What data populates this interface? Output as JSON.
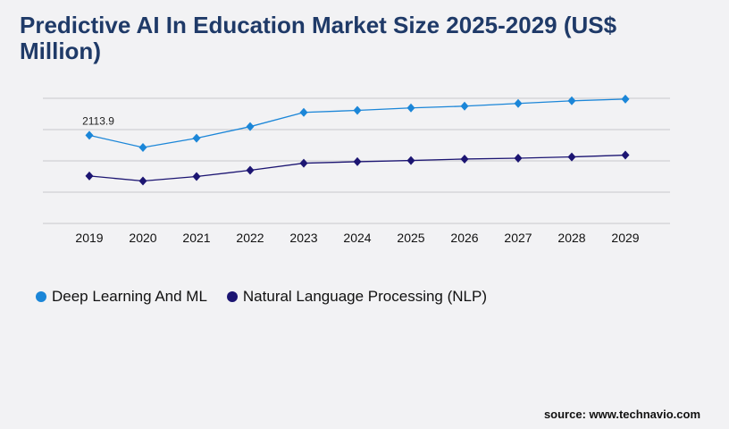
{
  "title": "Predictive AI In Education Market Size 2025-2029 (US$ Million)",
  "source": "source: www.technavio.com",
  "chart_data": {
    "type": "line",
    "title": "Predictive AI In Education Market Size 2025-2029 (US$ Million)",
    "xlabel": "",
    "ylabel": "",
    "categories": [
      "2019",
      "2020",
      "2021",
      "2022",
      "2023",
      "2024",
      "2025",
      "2026",
      "2027",
      "2028",
      "2029"
    ],
    "ylim": [
      0,
      3000
    ],
    "grid": true,
    "legend": "bottom-left",
    "series": [
      {
        "name": "Deep Learning And ML",
        "color": "#1b86d8",
        "values": [
          2113.9,
          1821,
          2043,
          2321,
          2662,
          2711,
          2769,
          2812,
          2876,
          2940,
          2982
        ]
      },
      {
        "name": "Natural Language Processing (NLP)",
        "color": "#1c1572",
        "values": [
          1138,
          1018,
          1125,
          1275,
          1445,
          1480,
          1509,
          1544,
          1565,
          1595,
          1638
        ]
      }
    ],
    "annotations": [
      {
        "category": "2019",
        "series": 0,
        "text": "2113.9"
      }
    ]
  }
}
